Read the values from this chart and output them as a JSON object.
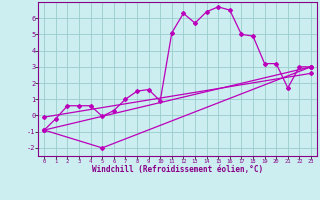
{
  "xlabel": "Windchill (Refroidissement éolien,°C)",
  "xlim": [
    -0.5,
    23.5
  ],
  "ylim": [
    -2.5,
    7.0
  ],
  "yticks": [
    -2,
    -1,
    0,
    1,
    2,
    3,
    4,
    5,
    6
  ],
  "xticks": [
    0,
    1,
    2,
    3,
    4,
    5,
    6,
    7,
    8,
    9,
    10,
    11,
    12,
    13,
    14,
    15,
    16,
    17,
    18,
    19,
    20,
    21,
    22,
    23
  ],
  "bg_color": "#cceef0",
  "line_color": "#bb00bb",
  "grid_color": "#99cccc",
  "line1_x": [
    0,
    1,
    2,
    3,
    4,
    5,
    6,
    7,
    8,
    9,
    10,
    11,
    12,
    13,
    14,
    15,
    16,
    17,
    18,
    19,
    20,
    21,
    22,
    23
  ],
  "line1_y": [
    -0.9,
    -0.2,
    0.6,
    0.6,
    0.6,
    -0.05,
    0.3,
    1.0,
    1.5,
    1.6,
    0.9,
    5.1,
    6.3,
    5.7,
    6.4,
    6.7,
    6.5,
    5.0,
    4.9,
    3.2,
    3.2,
    1.7,
    3.0,
    3.0
  ],
  "line2_x": [
    0,
    23
  ],
  "line2_y": [
    -0.9,
    3.0
  ],
  "line3_x": [
    0,
    5,
    23
  ],
  "line3_y": [
    -0.9,
    -2.0,
    3.0
  ],
  "line4_x": [
    0,
    23
  ],
  "line4_y": [
    -0.1,
    2.6
  ]
}
